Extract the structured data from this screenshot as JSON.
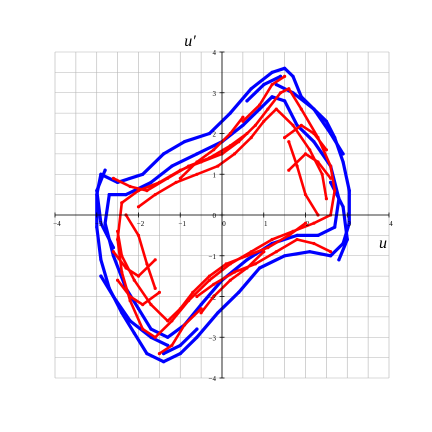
{
  "chart_data": {
    "type": "scatter",
    "title": "",
    "xlabel": "u",
    "ylabel": "u′",
    "xlim": [
      -4,
      4
    ],
    "ylim": [
      -4,
      4
    ],
    "grid": true,
    "grid_step": 0.5,
    "x_ticks": [
      -4,
      -3,
      -2,
      -1,
      0,
      1,
      2,
      3,
      4
    ],
    "y_ticks": [
      -4,
      -3,
      -2,
      -1,
      0,
      1,
      2,
      3,
      4
    ],
    "x_tick_labels": [
      "−4",
      "−3",
      "−2",
      "−1",
      "0",
      "1",
      "2",
      "3",
      "4"
    ],
    "y_tick_labels": [
      "−4",
      "−3",
      "−2",
      "−1",
      "0",
      "1",
      "2",
      "3",
      "4"
    ],
    "series": [
      {
        "color": "#0000ff",
        "strands": [
          [
            [
              -2.9,
              1.0
            ],
            [
              -2.5,
              0.8
            ],
            [
              -1.9,
              1.0
            ],
            [
              -1.4,
              1.5
            ],
            [
              -0.9,
              1.8
            ],
            [
              -0.3,
              2.0
            ],
            [
              0.2,
              2.5
            ],
            [
              0.7,
              3.1
            ],
            [
              1.2,
              3.5
            ],
            [
              1.5,
              3.6
            ],
            [
              1.7,
              3.4
            ],
            [
              1.9,
              2.9
            ],
            [
              2.2,
              2.6
            ],
            [
              2.5,
              2.3
            ],
            [
              2.7,
              1.9
            ],
            [
              2.9,
              1.3
            ],
            [
              3.05,
              0.6
            ],
            [
              3.05,
              -0.2
            ],
            [
              2.9,
              -0.7
            ],
            [
              2.6,
              -1.0
            ],
            [
              2.1,
              -0.9
            ],
            [
              1.5,
              -1.0
            ],
            [
              0.9,
              -1.3
            ],
            [
              0.4,
              -1.9
            ],
            [
              -0.1,
              -2.4
            ],
            [
              -0.6,
              -3.0
            ],
            [
              -1.0,
              -3.4
            ],
            [
              -1.4,
              -3.6
            ],
            [
              -1.8,
              -3.4
            ],
            [
              -2.1,
              -2.9
            ],
            [
              -2.4,
              -2.4
            ],
            [
              -2.7,
              -1.8
            ],
            [
              -2.9,
              -1.1
            ],
            [
              -3.0,
              -0.3
            ],
            [
              -3.0,
              0.5
            ],
            [
              -2.9,
              1.0
            ]
          ],
          [
            [
              -2.7,
              0.5
            ],
            [
              -2.3,
              0.5
            ],
            [
              -1.7,
              0.8
            ],
            [
              -1.2,
              1.2
            ],
            [
              -0.6,
              1.5
            ],
            [
              0.0,
              1.8
            ],
            [
              0.5,
              2.2
            ],
            [
              0.9,
              2.6
            ],
            [
              1.2,
              2.9
            ],
            [
              1.5,
              2.8
            ],
            [
              1.8,
              2.2
            ],
            [
              2.2,
              1.8
            ],
            [
              2.6,
              1.2
            ],
            [
              2.8,
              0.4
            ],
            [
              2.7,
              -0.3
            ],
            [
              2.3,
              -0.5
            ],
            [
              1.8,
              -0.5
            ],
            [
              1.2,
              -0.7
            ],
            [
              0.6,
              -1.1
            ],
            [
              0.0,
              -1.6
            ],
            [
              -0.5,
              -2.2
            ],
            [
              -0.9,
              -2.7
            ],
            [
              -1.3,
              -3.0
            ],
            [
              -1.7,
              -2.8
            ],
            [
              -2.0,
              -2.3
            ],
            [
              -2.3,
              -1.8
            ],
            [
              -2.6,
              -1.0
            ],
            [
              -2.8,
              -0.2
            ],
            [
              -2.7,
              0.5
            ]
          ],
          [
            [
              1.3,
              3.2
            ],
            [
              1.7,
              3.0
            ],
            [
              2.2,
              2.6
            ],
            [
              2.6,
              2.0
            ],
            [
              2.9,
              1.5
            ]
          ],
          [
            [
              -1.3,
              -3.2
            ],
            [
              -1.7,
              -3.0
            ],
            [
              -2.2,
              -2.6
            ],
            [
              -2.6,
              -2.0
            ],
            [
              -2.9,
              -1.5
            ]
          ],
          [
            [
              0.6,
              2.8
            ],
            [
              1.0,
              3.2
            ],
            [
              1.4,
              3.4
            ]
          ],
          [
            [
              -0.6,
              -2.8
            ],
            [
              -1.0,
              -3.2
            ],
            [
              -1.4,
              -3.4
            ]
          ],
          [
            [
              2.6,
              0.8
            ],
            [
              2.9,
              0.2
            ],
            [
              3.0,
              -0.6
            ],
            [
              2.8,
              -1.1
            ]
          ],
          [
            [
              -2.6,
              -0.8
            ],
            [
              -2.9,
              -0.2
            ],
            [
              -3.0,
              0.6
            ],
            [
              -2.8,
              1.1
            ]
          ]
        ]
      },
      {
        "color": "#ff0000",
        "strands": [
          [
            [
              -2.4,
              0.3
            ],
            [
              -2.0,
              0.6
            ],
            [
              -1.5,
              0.8
            ],
            [
              -1.0,
              1.1
            ],
            [
              -0.5,
              1.3
            ],
            [
              0.0,
              1.5
            ],
            [
              0.4,
              1.8
            ],
            [
              0.8,
              2.2
            ],
            [
              1.1,
              2.6
            ],
            [
              1.4,
              3.0
            ],
            [
              1.6,
              3.1
            ],
            [
              1.9,
              2.6
            ],
            [
              2.3,
              1.9
            ],
            [
              2.6,
              1.2
            ],
            [
              2.7,
              0.6
            ],
            [
              2.6,
              0.0
            ],
            [
              2.2,
              -0.2
            ],
            [
              1.7,
              -0.4
            ],
            [
              1.2,
              -0.6
            ],
            [
              0.7,
              -0.9
            ],
            [
              0.2,
              -1.2
            ],
            [
              -0.3,
              -1.6
            ],
            [
              -0.8,
              -2.1
            ],
            [
              -1.2,
              -2.6
            ],
            [
              -1.6,
              -3.0
            ],
            [
              -1.9,
              -2.8
            ],
            [
              -2.2,
              -2.1
            ],
            [
              -2.4,
              -1.4
            ],
            [
              -2.5,
              -0.6
            ],
            [
              -2.4,
              0.3
            ]
          ],
          [
            [
              -2.0,
              0.2
            ],
            [
              -1.6,
              0.5
            ],
            [
              -1.1,
              0.8
            ],
            [
              -0.6,
              1.0
            ],
            [
              -0.1,
              1.2
            ],
            [
              0.3,
              1.5
            ],
            [
              0.7,
              1.9
            ],
            [
              1.0,
              2.3
            ],
            [
              1.3,
              2.6
            ],
            [
              1.7,
              2.2
            ],
            [
              2.1,
              1.6
            ],
            [
              2.4,
              1.0
            ],
            [
              2.5,
              0.4
            ]
          ],
          [
            [
              2.0,
              -0.2
            ],
            [
              1.6,
              -0.5
            ],
            [
              1.1,
              -0.8
            ],
            [
              0.6,
              -1.0
            ],
            [
              0.1,
              -1.2
            ],
            [
              -0.3,
              -1.5
            ],
            [
              -0.7,
              -1.9
            ],
            [
              -1.0,
              -2.3
            ],
            [
              -1.3,
              -2.6
            ],
            [
              -1.7,
              -2.2
            ],
            [
              -2.1,
              -1.6
            ],
            [
              -2.4,
              -1.0
            ],
            [
              -2.5,
              -0.4
            ]
          ],
          [
            [
              -2.6,
              0.9
            ],
            [
              -2.2,
              0.7
            ],
            [
              -1.8,
              0.6
            ],
            [
              -1.3,
              0.9
            ],
            [
              -0.8,
              1.2
            ],
            [
              -0.3,
              1.4
            ],
            [
              0.2,
              1.7
            ],
            [
              0.6,
              2.0
            ]
          ],
          [
            [
              2.6,
              -0.9
            ],
            [
              2.2,
              -0.7
            ],
            [
              1.8,
              -0.6
            ],
            [
              1.3,
              -0.9
            ],
            [
              0.8,
              -1.2
            ],
            [
              0.3,
              -1.4
            ],
            [
              -0.2,
              -1.7
            ],
            [
              -0.6,
              -2.0
            ]
          ],
          [
            [
              0.5,
              2.3
            ],
            [
              0.9,
              2.7
            ],
            [
              1.2,
              3.2
            ],
            [
              1.5,
              3.4
            ]
          ],
          [
            [
              -0.5,
              -2.3
            ],
            [
              -0.9,
              -2.7
            ],
            [
              -1.2,
              -3.2
            ],
            [
              -1.5,
              -3.4
            ]
          ],
          [
            [
              1.5,
              1.9
            ],
            [
              1.9,
              2.2
            ],
            [
              2.2,
              2.0
            ],
            [
              2.5,
              1.6
            ]
          ],
          [
            [
              -1.5,
              -1.9
            ],
            [
              -1.9,
              -2.2
            ],
            [
              -2.2,
              -2.0
            ],
            [
              -2.5,
              -1.6
            ]
          ],
          [
            [
              1.6,
              1.1
            ],
            [
              2.0,
              1.5
            ],
            [
              2.3,
              1.3
            ],
            [
              2.6,
              0.9
            ]
          ],
          [
            [
              -1.6,
              -1.1
            ],
            [
              -2.0,
              -1.5
            ],
            [
              -2.3,
              -1.3
            ],
            [
              -2.6,
              -0.9
            ]
          ],
          [
            [
              -2.3,
              0.0
            ],
            [
              -2.0,
              -0.5
            ],
            [
              -1.8,
              -1.2
            ],
            [
              -1.6,
              -1.8
            ]
          ],
          [
            [
              2.3,
              0.0
            ],
            [
              2.0,
              0.5
            ],
            [
              1.8,
              1.2
            ],
            [
              1.6,
              1.8
            ]
          ],
          [
            [
              -1.0,
              0.9
            ],
            [
              -0.6,
              1.3
            ],
            [
              -0.2,
              1.6
            ],
            [
              0.2,
              2.0
            ],
            [
              0.5,
              2.4
            ]
          ],
          [
            [
              1.0,
              -0.9
            ],
            [
              0.6,
              -1.3
            ],
            [
              0.2,
              -1.6
            ],
            [
              -0.2,
              -2.0
            ],
            [
              -0.5,
              -2.4
            ]
          ]
        ]
      }
    ]
  }
}
